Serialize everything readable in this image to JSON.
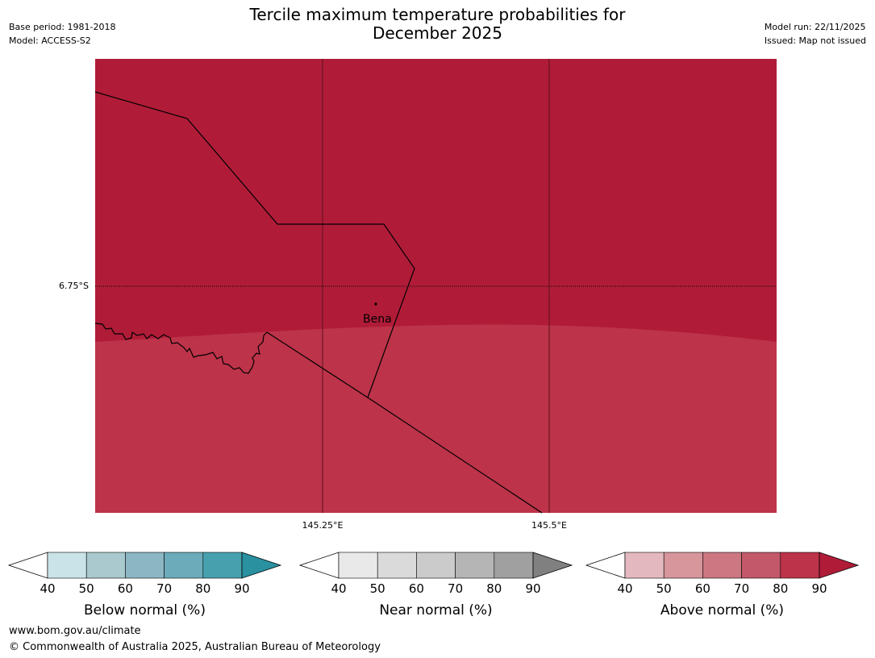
{
  "title_line1": "Tercile maximum temperature probabilities for",
  "title_line2": "December 2025",
  "meta_left": {
    "base_period": "Base period: 1981-2018",
    "model": "Model: ACCESS-S2"
  },
  "meta_right": {
    "model_run": "Model run: 22/11/2025",
    "issued": "Issued: Map not issued"
  },
  "map": {
    "lat_label": "6.75°S",
    "lon_labels": [
      "145.25°E",
      "145.5°E"
    ],
    "place": "Bena",
    "colors": {
      "above_90": "#b01c38",
      "above_80": "#bd3349",
      "border": "#000000"
    }
  },
  "legends": [
    {
      "name": "below",
      "label": "Below normal (%)",
      "ticks": [
        "40",
        "50",
        "60",
        "70",
        "80",
        "90"
      ],
      "colors": [
        "#ffffff",
        "#cae3e8",
        "#a9c9ce",
        "#8cb6c3",
        "#6babba",
        "#47a0ae",
        "#2991a0"
      ]
    },
    {
      "name": "near",
      "label": "Near normal (%)",
      "ticks": [
        "40",
        "50",
        "60",
        "70",
        "80",
        "90"
      ],
      "colors": [
        "#ffffff",
        "#e9e9e9",
        "#dadada",
        "#cbcbcb",
        "#b5b5b5",
        "#a0a0a0",
        "#808080"
      ]
    },
    {
      "name": "above",
      "label": "Above normal (%)",
      "ticks": [
        "40",
        "50",
        "60",
        "70",
        "80",
        "90"
      ],
      "colors": [
        "#ffffff",
        "#e3b9bf",
        "#d7969c",
        "#cc7781",
        "#c25869",
        "#bd3349",
        "#b01c38"
      ]
    }
  ],
  "footer": {
    "url": "www.bom.gov.au/climate",
    "copyright": "© Commonwealth of Australia 2025, Australian Bureau of Meteorology"
  }
}
